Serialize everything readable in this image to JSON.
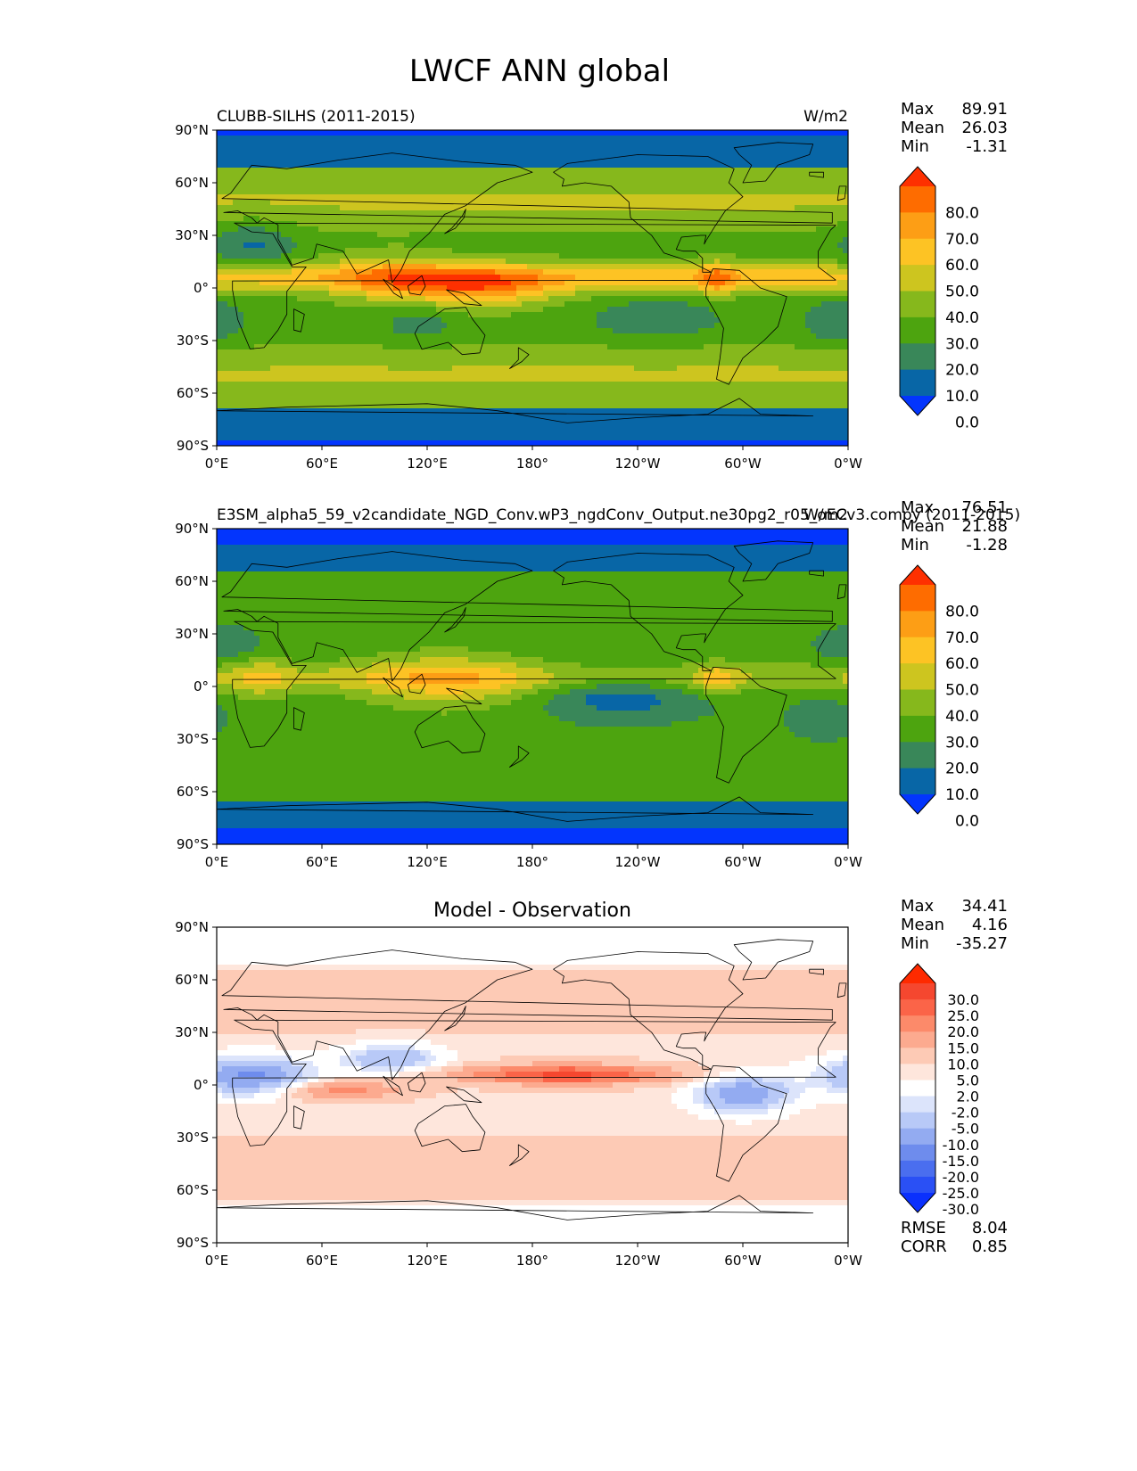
{
  "figure_title": "LWCF ANN global",
  "x_ticks": [
    "0°E",
    "60°E",
    "120°E",
    "180°",
    "120°W",
    "60°W",
    "0°W"
  ],
  "y_ticks": [
    "90°N",
    "60°N",
    "30°N",
    "0°",
    "30°S",
    "60°S",
    "90°S"
  ],
  "stat_labels": {
    "max": "Max",
    "mean": "Mean",
    "min": "Min",
    "rmse": "RMSE",
    "corr": "CORR"
  },
  "panels": [
    {
      "title_left": "CLUBB-SILHS (2011-2015)",
      "title_center": "",
      "title_right": "W/m2",
      "stats": {
        "max": "89.91",
        "mean": "26.03",
        "min": "-1.31"
      },
      "colorbar": {
        "labels": [
          "80.0",
          "70.0",
          "60.0",
          "50.0",
          "40.0",
          "30.0",
          "20.0",
          "10.0",
          "0.0"
        ],
        "colors": [
          "#fe3000",
          "#fe6c00",
          "#fd9e15",
          "#fdc324",
          "#cdc51f",
          "#86b81c",
          "#4da40f",
          "#398759",
          "#0866a6",
          "#0335fd"
        ]
      }
    },
    {
      "title_left": "E3SM_alpha5_59_v2candidate_NGD_Conv.wP3_ngdConv_Output.ne30pg2_r05_oECv3.compy (2011-2015)",
      "title_center": "",
      "title_right": "W/m2",
      "stats": {
        "max": "76.51",
        "mean": "21.88",
        "min": "-1.28"
      },
      "colorbar": {
        "labels": [
          "80.0",
          "70.0",
          "60.0",
          "50.0",
          "40.0",
          "30.0",
          "20.0",
          "10.0",
          "0.0"
        ],
        "colors": [
          "#fe3000",
          "#fe6c00",
          "#fd9e15",
          "#fdc324",
          "#cdc51f",
          "#86b81c",
          "#4da40f",
          "#398759",
          "#0866a6",
          "#0335fd"
        ]
      }
    },
    {
      "title_left": "",
      "title_center": "Model - Observation",
      "title_right": "",
      "stats": {
        "max": "34.41",
        "mean": "4.16",
        "min": "-35.27",
        "rmse": "8.04",
        "corr": "0.85"
      },
      "colorbar": {
        "labels": [
          "30.0",
          "25.0",
          "20.0",
          "15.0",
          "10.0",
          "5.0",
          "2.0",
          "-2.0",
          "-5.0",
          "-10.0",
          "-15.0",
          "-20.0",
          "-25.0",
          "-30.0"
        ],
        "colors": [
          "#fe2a00",
          "#f5472f",
          "#fb6448",
          "#fc8a6a",
          "#fcaa8f",
          "#fdcab5",
          "#fee6dc",
          "#ffffff",
          "#dce4fb",
          "#b8c9f7",
          "#93abf1",
          "#6e8ced",
          "#4a6eef",
          "#2a50f5",
          "#0a30fd"
        ]
      }
    }
  ]
}
